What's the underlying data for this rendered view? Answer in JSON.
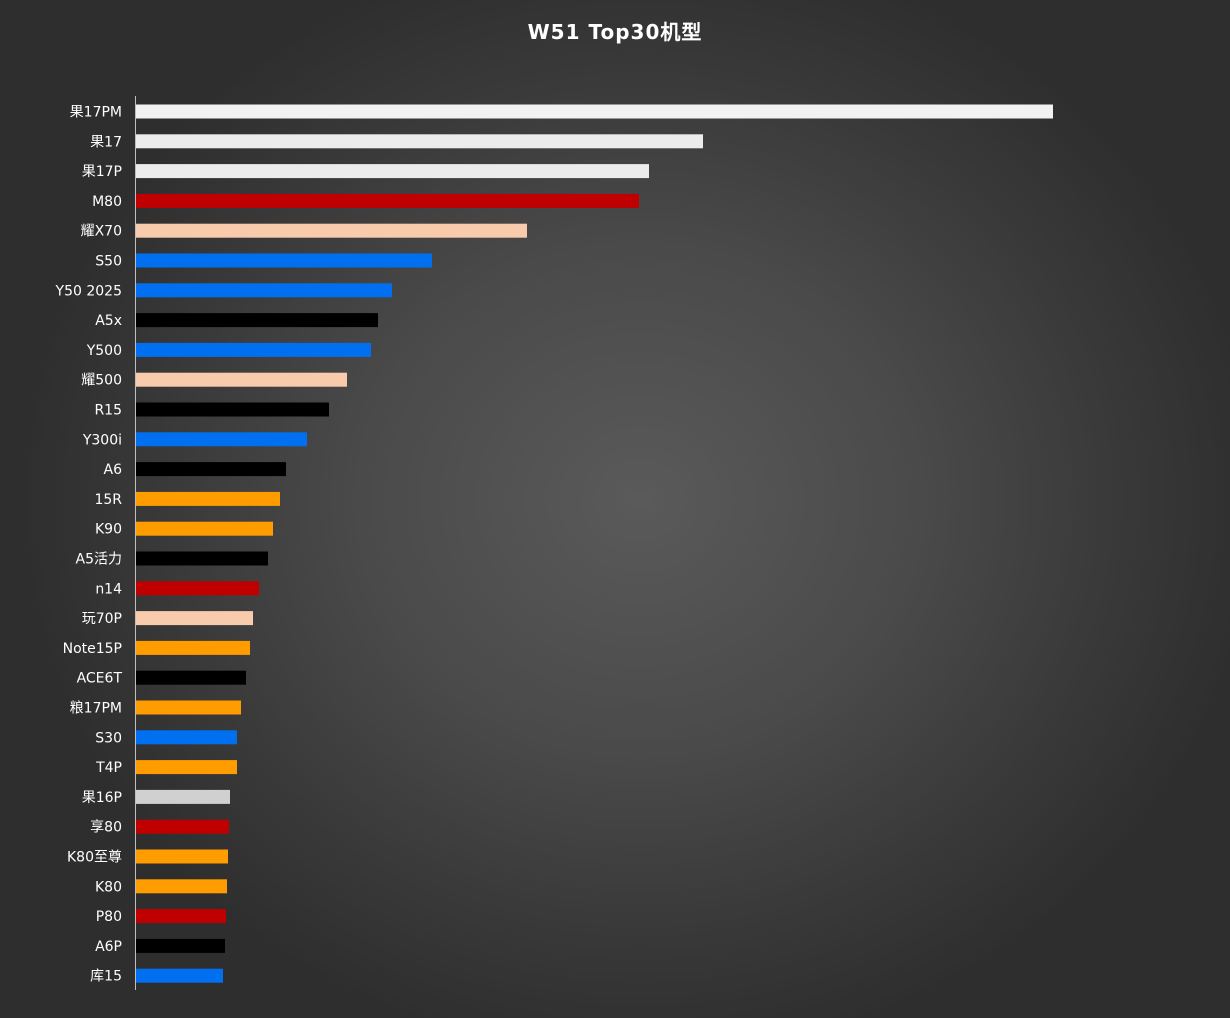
{
  "chart_data": {
    "type": "bar",
    "orientation": "horizontal",
    "title": "W51 Top30机型",
    "xlabel": "",
    "ylabel": "",
    "grid": false,
    "legend": "none",
    "categories": [
      "果17PM",
      "果17",
      "果17P",
      "M80",
      "耀X70",
      "S50",
      "Y50 2025",
      "A5x",
      "Y500",
      "耀500",
      "R15",
      "Y300i",
      "A6",
      "15R",
      "K90",
      "A5活力",
      "n14",
      "玩70P",
      "Note15P",
      "ACE6T",
      "粮17PM",
      "S30",
      "T4P",
      "果16P",
      "享80",
      "K80至尊",
      "K80",
      "P80",
      "A6P",
      "库15"
    ],
    "values": [
      917,
      567,
      513,
      503,
      391,
      296,
      256,
      242,
      235,
      211,
      193,
      171,
      150,
      144,
      137,
      132,
      123,
      117,
      114,
      110,
      105,
      101,
      101,
      94,
      93,
      92,
      91,
      90,
      89,
      87
    ],
    "xlim": [
      0,
      1094
    ],
    "colors": [
      "#f2f2f2",
      "#ececec",
      "#ececec",
      "#c00000",
      "#f8cbad",
      "#0070f0",
      "#0070f0",
      "#000000",
      "#0070f0",
      "#f8cbad",
      "#000000",
      "#0070f0",
      "#000000",
      "#ff9c00",
      "#ff9c00",
      "#000000",
      "#c00000",
      "#f8cbad",
      "#ff9c00",
      "#000000",
      "#ff9c00",
      "#0070f0",
      "#ff9c00",
      "#d0d0d0",
      "#c00000",
      "#ff9c00",
      "#ff9c00",
      "#c00000",
      "#000000",
      "#0070f0"
    ]
  }
}
